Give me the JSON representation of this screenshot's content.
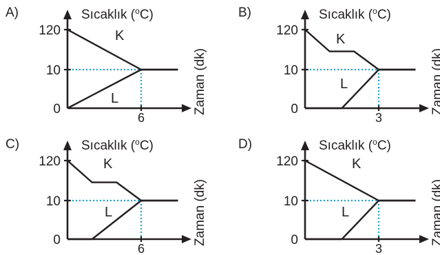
{
  "chart_data": [
    {
      "type": "line",
      "option_label": "A)",
      "ylabel": "Sıcaklık (°C)",
      "ylabel_base": "Sıcaklık (",
      "ylabel_sup": "o",
      "ylabel_end": "C)",
      "xlabel": "Zaman (dk)",
      "y_ticks": [
        "120",
        "10",
        "0"
      ],
      "x_mark": "6",
      "x_mark_value": 6,
      "series": [
        {
          "name": "K",
          "points": [
            [
              0,
              120
            ],
            [
              6,
              10
            ],
            [
              9,
              10
            ]
          ]
        },
        {
          "name": "L",
          "points": [
            [
              0,
              0
            ],
            [
              6,
              10
            ],
            [
              9,
              10
            ]
          ]
        }
      ]
    },
    {
      "type": "line",
      "option_label": "B)",
      "ylabel": "Sıcaklık (°C)",
      "ylabel_base": "Sıcaklık (",
      "ylabel_sup": "o",
      "ylabel_end": "C)",
      "xlabel": "Zaman (dk)",
      "y_ticks": [
        "120",
        "10",
        "0"
      ],
      "x_mark": "3",
      "x_mark_value": 3,
      "series": [
        {
          "name": "K",
          "points": [
            [
              0,
              120
            ],
            [
              1,
              60
            ],
            [
              2,
              60
            ],
            [
              3,
              10
            ],
            [
              4.5,
              10
            ]
          ]
        },
        {
          "name": "L",
          "points": [
            [
              0,
              0
            ],
            [
              1.5,
              0
            ],
            [
              3,
              10
            ],
            [
              4.5,
              10
            ]
          ]
        }
      ]
    },
    {
      "type": "line",
      "option_label": "C)",
      "ylabel": "Sıcaklık (°C)",
      "ylabel_base": "Sıcaklık (",
      "ylabel_sup": "o",
      "ylabel_end": "C)",
      "xlabel": "Zaman (dk)",
      "y_ticks": [
        "120",
        "10",
        "0"
      ],
      "x_mark": "6",
      "x_mark_value": 6,
      "series": [
        {
          "name": "K",
          "points": [
            [
              0,
              120
            ],
            [
              2,
              60
            ],
            [
              4,
              60
            ],
            [
              6,
              10
            ],
            [
              9,
              10
            ]
          ]
        },
        {
          "name": "L",
          "points": [
            [
              0,
              0
            ],
            [
              2,
              0
            ],
            [
              6,
              10
            ],
            [
              9,
              10
            ]
          ]
        }
      ]
    },
    {
      "type": "line",
      "option_label": "D)",
      "ylabel": "Sıcaklık (°C)",
      "ylabel_base": "Sıcaklık (",
      "ylabel_sup": "o",
      "ylabel_end": "C)",
      "xlabel": "Zaman (dk)",
      "y_ticks": [
        "120",
        "10",
        "0"
      ],
      "x_mark": "3",
      "x_mark_value": 3,
      "series": [
        {
          "name": "K",
          "points": [
            [
              0,
              120
            ],
            [
              3,
              10
            ],
            [
              4.5,
              10
            ]
          ]
        },
        {
          "name": "L",
          "points": [
            [
              0,
              0
            ],
            [
              1.5,
              0
            ],
            [
              3,
              10
            ],
            [
              4.5,
              10
            ]
          ]
        }
      ]
    }
  ]
}
